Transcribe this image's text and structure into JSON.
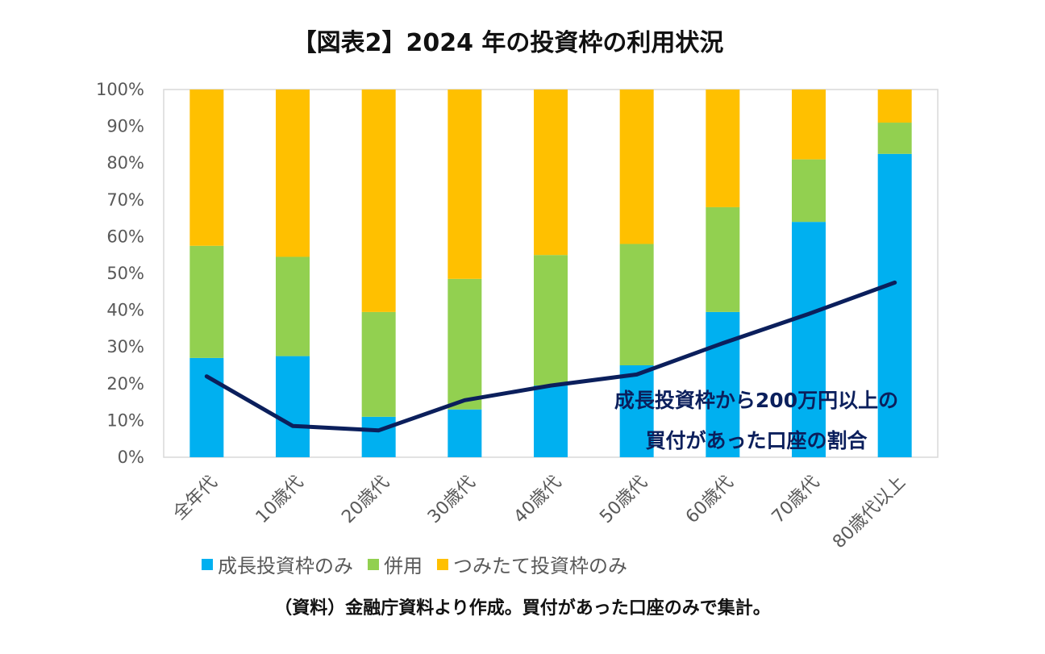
{
  "title": "【図表2】2024 年の投資枠の利用状況",
  "source": "（資料）金融庁資料より作成。買付があった口座のみで集計。",
  "colors": {
    "growth": "#00b0f0",
    "both": "#92d050",
    "tsumitate": "#ffc000",
    "line": "#0b1f5c",
    "plot_border": "#d9d9d9"
  },
  "chart_data": {
    "type": "bar",
    "stacked": true,
    "percent_stacked": true,
    "title": "【図表2】2024 年の投資枠の利用状況",
    "categories": [
      "全年代",
      "10歳代",
      "20歳代",
      "30歳代",
      "40歳代",
      "50歳代",
      "60歳代",
      "70歳代",
      "80歳代以上"
    ],
    "series": [
      {
        "name": "成長投資枠のみ",
        "color_key": "growth",
        "values": [
          27,
          27.5,
          11,
          13,
          19.5,
          25,
          39.5,
          64,
          82.5
        ]
      },
      {
        "name": "併用",
        "color_key": "both",
        "values": [
          30.5,
          27,
          28.5,
          35.5,
          35.5,
          33,
          28.5,
          17,
          8.5
        ]
      },
      {
        "name": "つみたて投資枠のみ",
        "color_key": "tsumitate",
        "values": [
          42.5,
          45.5,
          60.5,
          51.5,
          45,
          42,
          32,
          19,
          9
        ]
      }
    ],
    "line_series": {
      "name": "成長投資枠から200万円以上の買付があった口座の割合",
      "color_key": "line",
      "values": [
        22,
        8.5,
        7.3,
        15.5,
        19.5,
        22.5,
        31,
        39,
        47.5
      ]
    },
    "annotation_lines": [
      "成長投資枠から200万円以上の",
      "買付があった口座の割合"
    ],
    "ylim": [
      0,
      100
    ],
    "yticks": [
      "0%",
      "10%",
      "20%",
      "30%",
      "40%",
      "50%",
      "60%",
      "70%",
      "80%",
      "90%",
      "100%"
    ],
    "xlabel": "",
    "ylabel": "",
    "legend": [
      "成長投資枠のみ",
      "併用",
      "つみたて投資枠のみ"
    ],
    "legend_position": "bottom"
  }
}
